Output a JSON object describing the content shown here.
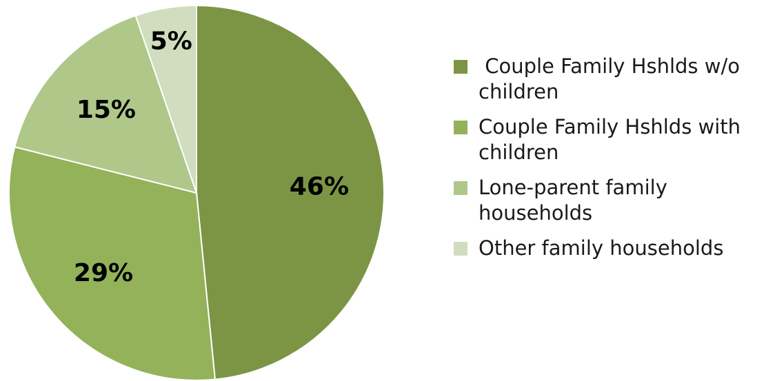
{
  "chart_data": {
    "type": "pie",
    "title": "",
    "start_angle_deg": 0,
    "direction": "clockwise",
    "slices": [
      {
        "label": " Couple Family Hshlds w/o children",
        "value": 46,
        "display": "46%",
        "color": "#7c9545"
      },
      {
        "label": "Couple Family Hshlds with  children",
        "value": 29,
        "display": "29%",
        "color": "#93b25a"
      },
      {
        "label": "Lone-parent family households",
        "value": 15,
        "display": "15%",
        "color": "#b0c78a"
      },
      {
        "label": "Other family households",
        "value": 5,
        "display": "5%",
        "color": "#d0ddbe"
      }
    ],
    "legend": {
      "position": "right"
    }
  }
}
